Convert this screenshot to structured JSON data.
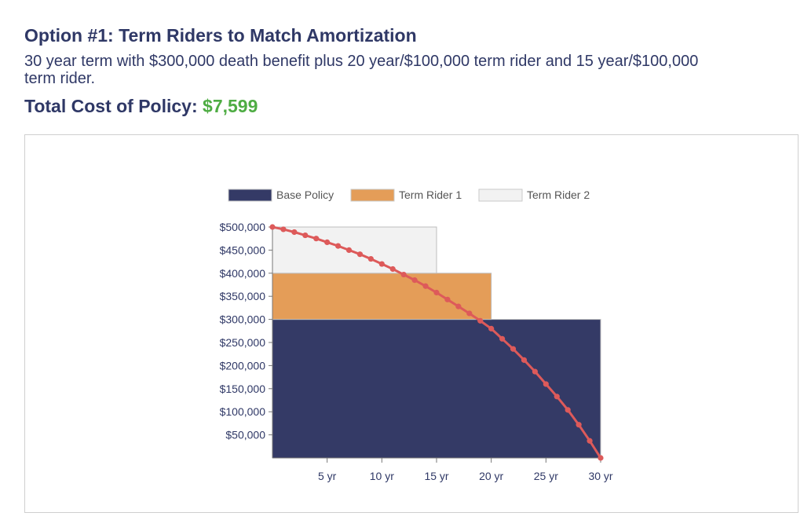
{
  "header": {
    "title": "Option #1: Term Riders to Match Amortization",
    "description": "30 year term with $300,000 death benefit plus 20 year/$100,000 term rider and 15 year/$100,000 term rider.",
    "cost_label": "Total Cost of Policy:",
    "cost_value": "$7,599"
  },
  "colors": {
    "text": "#2f3866",
    "cost": "#4eac43",
    "base_policy": "#343a66",
    "term_rider_1": "#e49d58",
    "term_rider_2": "#f2f2f2",
    "amortization_line": "#dd5a5a"
  },
  "chart_data": {
    "type": "area",
    "legend": {
      "position": "top",
      "items": [
        {
          "label": "Base Policy",
          "color": "#343a66"
        },
        {
          "label": "Term Rider 1",
          "color": "#e49d58"
        },
        {
          "label": "Term Rider 2",
          "color": "#f2f2f2"
        }
      ]
    },
    "xlim": [
      0,
      30
    ],
    "ylim": [
      0,
      500000
    ],
    "x_ticks": [
      {
        "value": 5,
        "label": "5 yr"
      },
      {
        "value": 10,
        "label": "10 yr"
      },
      {
        "value": 15,
        "label": "15 yr"
      },
      {
        "value": 20,
        "label": "20 yr"
      },
      {
        "value": 25,
        "label": "25 yr"
      },
      {
        "value": 30,
        "label": "30 yr"
      }
    ],
    "y_ticks": [
      {
        "value": 50000,
        "label": "$50,000"
      },
      {
        "value": 100000,
        "label": "$100,000"
      },
      {
        "value": 150000,
        "label": "$150,000"
      },
      {
        "value": 200000,
        "label": "$200,000"
      },
      {
        "value": 250000,
        "label": "$250,000"
      },
      {
        "value": 300000,
        "label": "$300,000"
      },
      {
        "value": 350000,
        "label": "$350,000"
      },
      {
        "value": 400000,
        "label": "$400,000"
      },
      {
        "value": 450000,
        "label": "$450,000"
      },
      {
        "value": 500000,
        "label": "$500,000"
      }
    ],
    "series": [
      {
        "name": "Base Policy",
        "from": 0,
        "to": 30,
        "bottom": 0,
        "top": 300000
      },
      {
        "name": "Term Rider 1",
        "from": 0,
        "to": 20,
        "bottom": 300000,
        "top": 400000
      },
      {
        "name": "Term Rider 2",
        "from": 0,
        "to": 15,
        "bottom": 400000,
        "top": 500000
      }
    ],
    "line": {
      "x": [
        0,
        1,
        2,
        3,
        4,
        5,
        6,
        7,
        8,
        9,
        10,
        11,
        12,
        13,
        14,
        15,
        16,
        17,
        18,
        19,
        20,
        21,
        22,
        23,
        24,
        25,
        26,
        27,
        28,
        29,
        30
      ],
      "y": [
        500000,
        495000,
        489000,
        482000,
        475000,
        467000,
        459000,
        450000,
        441000,
        431000,
        420000,
        409000,
        397000,
        385000,
        372000,
        358000,
        343000,
        328000,
        313000,
        297000,
        280000,
        258000,
        236000,
        212000,
        187000,
        160000,
        133000,
        104000,
        72000,
        37000,
        0
      ]
    }
  }
}
